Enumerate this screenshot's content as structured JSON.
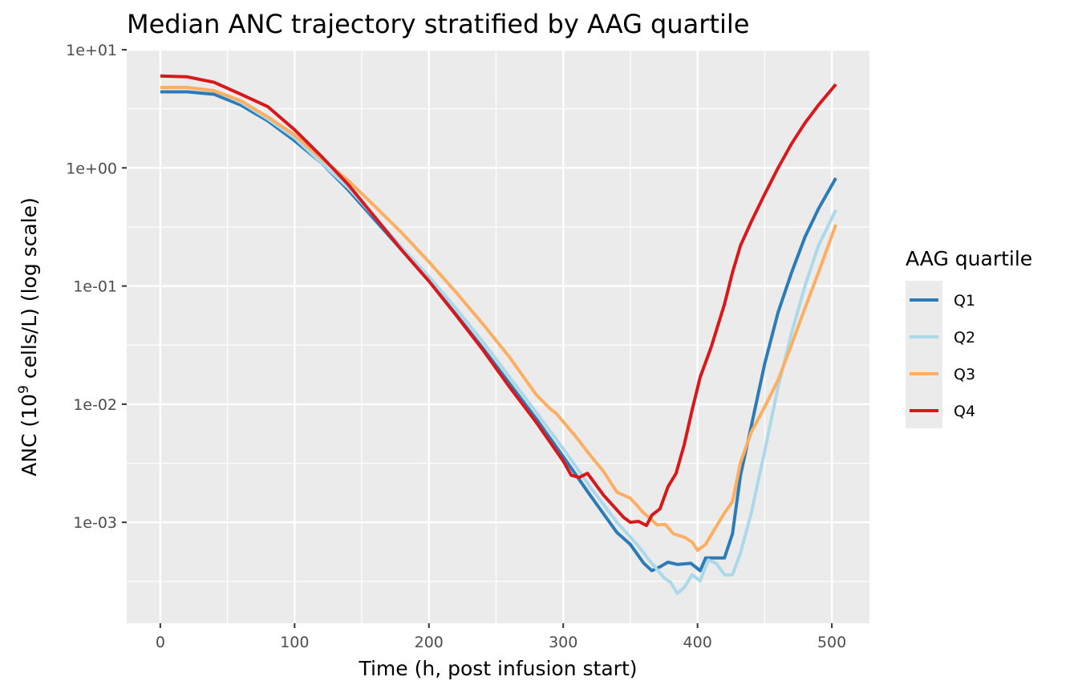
{
  "chart_data": {
    "type": "line",
    "title": "Median ANC trajectory stratified by AAG quartile",
    "xlabel": "Time (h, post infusion start)",
    "ylabel_prefix": "ANC (10",
    "ylabel_exponent": "9",
    "ylabel_suffix": " cells/L) (log scale)",
    "y_scale": "log10",
    "xlim": [
      -25,
      528
    ],
    "ylim": [
      0.00014,
      10
    ],
    "x_ticks": [
      0,
      100,
      200,
      300,
      400,
      500
    ],
    "x_tick_labels": [
      "0",
      "100",
      "200",
      "300",
      "400",
      "500"
    ],
    "y_ticks": [
      10,
      1,
      0.1,
      0.01,
      0.001
    ],
    "y_tick_labels": [
      "1e+01",
      "1e+00",
      "1e-01",
      "1e-02",
      "1e-03"
    ],
    "grid": true,
    "panel_background": "#ebebeb",
    "legend_title": "AAG quartile",
    "legend_position": "right",
    "series": [
      {
        "name": "Q1",
        "color": "#2c7bb6",
        "points": [
          [
            0,
            4.4
          ],
          [
            20,
            4.4
          ],
          [
            40,
            4.2
          ],
          [
            60,
            3.4
          ],
          [
            80,
            2.5
          ],
          [
            100,
            1.7
          ],
          [
            120,
            1.1
          ],
          [
            140,
            0.65
          ],
          [
            160,
            0.36
          ],
          [
            180,
            0.2
          ],
          [
            200,
            0.11
          ],
          [
            220,
            0.058
          ],
          [
            240,
            0.03
          ],
          [
            260,
            0.015
          ],
          [
            280,
            0.0075
          ],
          [
            300,
            0.0036
          ],
          [
            320,
            0.0017
          ],
          [
            340,
            0.00082
          ],
          [
            350,
            0.00065
          ],
          [
            360,
            0.00045
          ],
          [
            366,
            0.00039
          ],
          [
            372,
            0.00042
          ],
          [
            378,
            0.00046
          ],
          [
            385,
            0.00044
          ],
          [
            395,
            0.00045
          ],
          [
            402,
            0.00039
          ],
          [
            406,
            0.0005
          ],
          [
            420,
            0.0005
          ],
          [
            426,
            0.0008
          ],
          [
            432,
            0.0025
          ],
          [
            440,
            0.0065
          ],
          [
            450,
            0.022
          ],
          [
            460,
            0.06
          ],
          [
            470,
            0.13
          ],
          [
            480,
            0.26
          ],
          [
            490,
            0.45
          ],
          [
            503,
            0.82
          ]
        ]
      },
      {
        "name": "Q2",
        "color": "#abd9e9",
        "points": [
          [
            0,
            4.8
          ],
          [
            20,
            4.8
          ],
          [
            40,
            4.5
          ],
          [
            60,
            3.6
          ],
          [
            80,
            2.6
          ],
          [
            100,
            1.8
          ],
          [
            120,
            1.1
          ],
          [
            140,
            0.68
          ],
          [
            160,
            0.38
          ],
          [
            180,
            0.21
          ],
          [
            200,
            0.12
          ],
          [
            220,
            0.065
          ],
          [
            240,
            0.034
          ],
          [
            260,
            0.017
          ],
          [
            280,
            0.0085
          ],
          [
            300,
            0.0042
          ],
          [
            320,
            0.002
          ],
          [
            340,
            0.001
          ],
          [
            355,
            0.00065
          ],
          [
            366,
            0.00045
          ],
          [
            375,
            0.00034
          ],
          [
            380,
            0.00031
          ],
          [
            385,
            0.00025
          ],
          [
            390,
            0.00028
          ],
          [
            396,
            0.00036
          ],
          [
            402,
            0.00032
          ],
          [
            408,
            0.00048
          ],
          [
            414,
            0.00045
          ],
          [
            420,
            0.00036
          ],
          [
            426,
            0.00036
          ],
          [
            432,
            0.00055
          ],
          [
            440,
            0.0012
          ],
          [
            450,
            0.004
          ],
          [
            460,
            0.014
          ],
          [
            470,
            0.04
          ],
          [
            480,
            0.1
          ],
          [
            490,
            0.22
          ],
          [
            503,
            0.44
          ]
        ]
      },
      {
        "name": "Q3",
        "color": "#fdae61",
        "points": [
          [
            0,
            4.8
          ],
          [
            20,
            4.8
          ],
          [
            40,
            4.5
          ],
          [
            60,
            3.7
          ],
          [
            80,
            2.7
          ],
          [
            100,
            1.9
          ],
          [
            120,
            1.2
          ],
          [
            140,
            0.78
          ],
          [
            160,
            0.47
          ],
          [
            180,
            0.28
          ],
          [
            200,
            0.16
          ],
          [
            220,
            0.089
          ],
          [
            240,
            0.048
          ],
          [
            260,
            0.025
          ],
          [
            280,
            0.012
          ],
          [
            290,
            0.0092
          ],
          [
            295,
            0.0083
          ],
          [
            310,
            0.0052
          ],
          [
            320,
            0.0037
          ],
          [
            330,
            0.0027
          ],
          [
            340,
            0.0018
          ],
          [
            350,
            0.0016
          ],
          [
            360,
            0.0012
          ],
          [
            370,
            0.00095
          ],
          [
            376,
            0.00096
          ],
          [
            382,
            0.0008
          ],
          [
            390,
            0.00075
          ],
          [
            396,
            0.00068
          ],
          [
            400,
            0.00058
          ],
          [
            406,
            0.00065
          ],
          [
            412,
            0.00085
          ],
          [
            420,
            0.0012
          ],
          [
            426,
            0.0015
          ],
          [
            432,
            0.0032
          ],
          [
            440,
            0.0058
          ],
          [
            450,
            0.0095
          ],
          [
            460,
            0.016
          ],
          [
            470,
            0.032
          ],
          [
            480,
            0.065
          ],
          [
            490,
            0.13
          ],
          [
            503,
            0.33
          ]
        ]
      },
      {
        "name": "Q4",
        "color": "#d7191c",
        "points": [
          [
            0,
            6.0
          ],
          [
            20,
            5.9
          ],
          [
            40,
            5.3
          ],
          [
            60,
            4.2
          ],
          [
            80,
            3.3
          ],
          [
            100,
            2.1
          ],
          [
            120,
            1.25
          ],
          [
            140,
            0.72
          ],
          [
            160,
            0.38
          ],
          [
            180,
            0.2
          ],
          [
            200,
            0.11
          ],
          [
            220,
            0.057
          ],
          [
            240,
            0.029
          ],
          [
            260,
            0.014
          ],
          [
            280,
            0.007
          ],
          [
            300,
            0.0033
          ],
          [
            306,
            0.0025
          ],
          [
            312,
            0.0024
          ],
          [
            318,
            0.0026
          ],
          [
            330,
            0.0017
          ],
          [
            345,
            0.0011
          ],
          [
            350,
            0.001
          ],
          [
            356,
            0.00102
          ],
          [
            362,
            0.00094
          ],
          [
            366,
            0.00115
          ],
          [
            372,
            0.0013
          ],
          [
            378,
            0.002
          ],
          [
            384,
            0.0026
          ],
          [
            390,
            0.0045
          ],
          [
            396,
            0.009
          ],
          [
            402,
            0.017
          ],
          [
            410,
            0.03
          ],
          [
            420,
            0.07
          ],
          [
            426,
            0.13
          ],
          [
            432,
            0.22
          ],
          [
            440,
            0.35
          ],
          [
            450,
            0.6
          ],
          [
            460,
            1.0
          ],
          [
            470,
            1.6
          ],
          [
            480,
            2.4
          ],
          [
            490,
            3.4
          ],
          [
            503,
            5.1
          ]
        ]
      }
    ]
  }
}
